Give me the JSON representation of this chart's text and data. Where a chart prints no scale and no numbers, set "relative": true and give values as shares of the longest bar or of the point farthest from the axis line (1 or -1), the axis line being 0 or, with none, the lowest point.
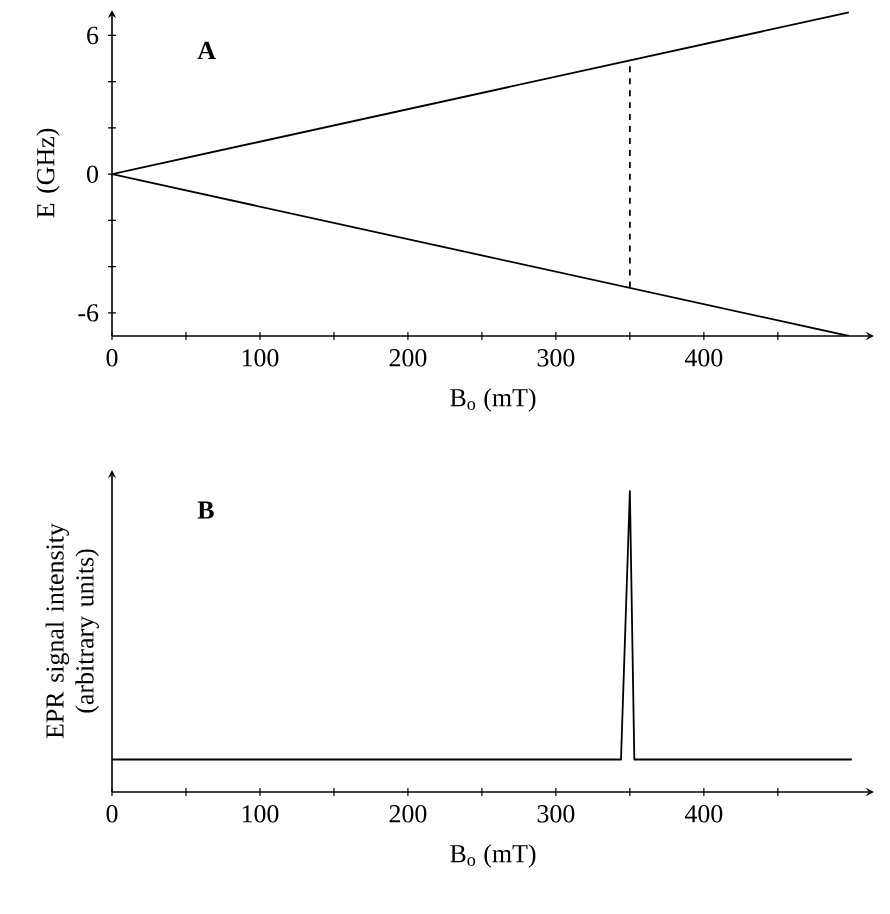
{
  "chart_data": [
    {
      "type": "line",
      "xlabel": "B$_{o}$ (mT)",
      "ylabel": "E (GHz)",
      "annotations": [
        "A"
      ],
      "xlim": [
        0,
        515
      ],
      "ylim": [
        -7,
        7.1
      ],
      "xticks": [
        0,
        {
          "value": 50,
          "label": null
        },
        100,
        {
          "value": 150,
          "label": null
        },
        200,
        {
          "value": 250,
          "label": null
        },
        300,
        {
          "value": 350,
          "label": null
        },
        400,
        {
          "value": 450,
          "label": null
        }
      ],
      "yticks": [
        -6,
        {
          "value": -4,
          "label": null
        },
        {
          "value": -2,
          "label": null
        },
        0,
        {
          "value": 2,
          "label": null
        },
        {
          "value": 4,
          "label": null
        },
        6
      ],
      "series": [
        {
          "color": "#000000",
          "x": [
            0,
            498
          ],
          "values": [
            0,
            7
          ]
        },
        {
          "color": "#000000",
          "x": [
            0,
            498
          ],
          "values": [
            0,
            -7
          ]
        },
        {
          "color": "#000000",
          "x": [
            350,
            350
          ],
          "values": [
            -4.9,
            4.9
          ],
          "line_style": "dashed"
        }
      ],
      "marker": "none"
    },
    {
      "type": "line",
      "xlabel": "B$_{o}$ (mT)",
      "ylabel": "EPR signal intensity (arbitrary units)",
      "annotations": [
        "B"
      ],
      "relative": true,
      "tick_labels": "x",
      "xlim": [
        0,
        515
      ],
      "xticks": [
        0,
        {
          "value": 50,
          "label": null
        },
        100,
        {
          "value": 150,
          "label": null
        },
        200,
        {
          "value": 250,
          "label": null
        },
        300,
        {
          "value": 350,
          "label": null
        },
        400,
        {
          "value": 450,
          "label": null
        }
      ],
      "series": [
        {
          "color": "#000000",
          "x": [
            0,
            344,
            350,
            353,
            500
          ],
          "values": [
            0.108,
            0.108,
            1,
            0.108,
            0.108
          ]
        }
      ],
      "marker": "none"
    }
  ]
}
